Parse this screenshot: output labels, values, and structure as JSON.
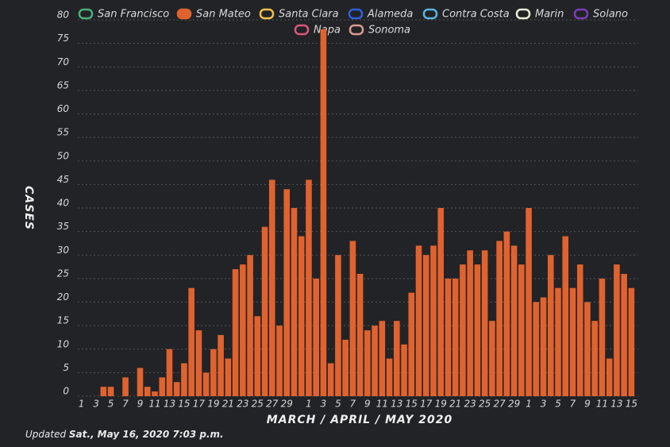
{
  "chart_data": {
    "type": "bar",
    "y_label": "CASES",
    "x_label": "MARCH / APRIL / MAY 2020",
    "footnote": {
      "prefix": "Updated",
      "emphasis": "Sat., May 16, 2020 7:03 p.m."
    },
    "categories": [
      "1",
      null,
      "3",
      null,
      "5",
      null,
      "7",
      null,
      "9",
      null,
      "11",
      null,
      "13",
      null,
      "15",
      null,
      "17",
      null,
      "19",
      null,
      "21",
      null,
      "23",
      null,
      "25",
      null,
      "27",
      null,
      "29",
      null,
      null,
      "1",
      null,
      "3",
      null,
      "5",
      null,
      "7",
      null,
      "9",
      null,
      "11",
      null,
      "13",
      null,
      "15",
      null,
      "17",
      null,
      "19",
      null,
      "21",
      null,
      "23",
      null,
      "25",
      null,
      "27",
      null,
      "29",
      null,
      "1",
      null,
      "3",
      null,
      "5",
      null,
      "7",
      null,
      "9",
      null,
      "11",
      null,
      "13",
      null,
      "15"
    ],
    "series": [
      {
        "name": "San Francisco",
        "color": "#4caf7d",
        "hidden": true
      },
      {
        "name": "San Mateo",
        "color": "#e0632f",
        "hidden": false,
        "values": [
          0,
          0,
          0,
          2,
          2,
          0,
          4,
          0,
          6,
          2,
          1,
          4,
          10,
          3,
          7,
          23,
          14,
          5,
          10,
          13,
          8,
          27,
          28,
          30,
          17,
          36,
          46,
          15,
          44,
          40,
          34,
          46,
          25,
          78,
          7,
          30,
          12,
          33,
          26,
          14,
          15,
          16,
          8,
          16,
          11,
          22,
          32,
          30,
          32,
          40,
          25,
          25,
          28,
          31,
          28,
          31,
          16,
          33,
          35,
          32,
          28,
          40,
          20,
          21,
          30,
          23,
          34,
          23,
          28,
          20,
          16,
          25,
          8,
          28,
          26,
          23
        ]
      },
      {
        "name": "Santa Clara",
        "color": "#f2c14e",
        "hidden": true
      },
      {
        "name": "Alameda",
        "color": "#2f5fe0",
        "hidden": true
      },
      {
        "name": "Contra Costa",
        "color": "#5ab4e0",
        "hidden": true
      },
      {
        "name": "Marin",
        "color": "#e8efd8",
        "hidden": true
      },
      {
        "name": "Solano",
        "color": "#7b3fb8",
        "hidden": true
      },
      {
        "name": "Napa",
        "color": "#d9577e",
        "hidden": true
      },
      {
        "name": "Sonoma",
        "color": "#d99a93",
        "hidden": true
      }
    ],
    "ylim": [
      0,
      80
    ],
    "yticks": [
      0,
      5,
      10,
      15,
      20,
      25,
      30,
      35,
      40,
      45,
      50,
      55,
      60,
      65,
      70,
      75,
      80
    ],
    "grid": true
  }
}
